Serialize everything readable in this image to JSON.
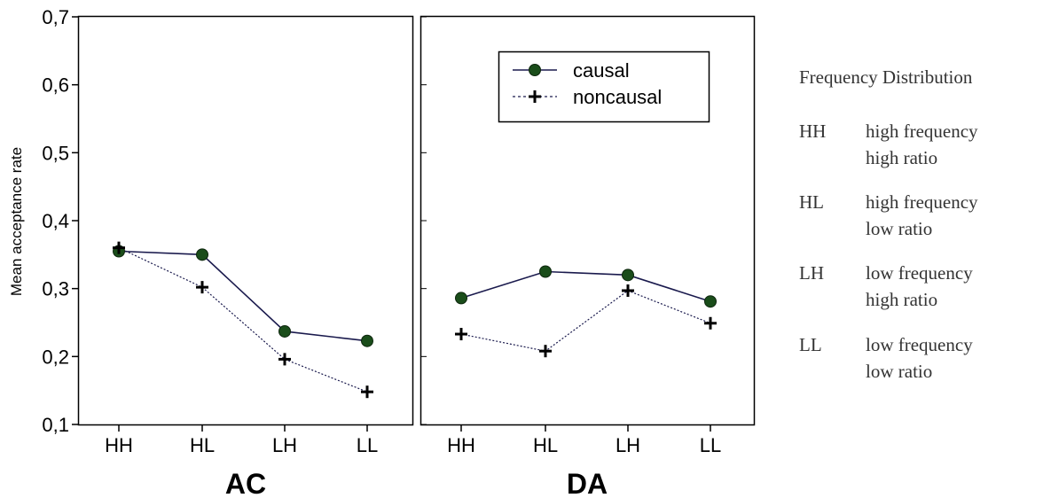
{
  "chart_data": {
    "type": "line",
    "ylabel": "Mean acceptance rate",
    "ylim": [
      0.1,
      0.7
    ],
    "yticks": [
      "0,1",
      "0,2",
      "0,3",
      "0,4",
      "0,5",
      "0,6",
      "0,7"
    ],
    "categories": [
      "HH",
      "HL",
      "LH",
      "LL"
    ],
    "legend": {
      "position": "top-right",
      "entries": [
        "causal",
        "noncausal"
      ]
    },
    "panels": [
      {
        "title": "AC",
        "series": [
          {
            "name": "causal",
            "color": "#1a4d1a",
            "line_color": "#1a1a4d",
            "marker": "circle",
            "values": [
              0.355,
              0.35,
              0.237,
              0.223
            ]
          },
          {
            "name": "noncausal",
            "color": "#000000",
            "line_color": "#1a1a4d",
            "marker": "plus",
            "values": [
              0.36,
              0.302,
              0.196,
              0.148
            ]
          }
        ]
      },
      {
        "title": "DA",
        "series": [
          {
            "name": "causal",
            "color": "#1a4d1a",
            "line_color": "#1a1a4d",
            "marker": "circle",
            "values": [
              0.286,
              0.325,
              0.32,
              0.281
            ]
          },
          {
            "name": "noncausal",
            "color": "#000000",
            "line_color": "#1a1a4d",
            "marker": "plus",
            "values": [
              0.233,
              0.208,
              0.297,
              0.249
            ]
          }
        ]
      }
    ],
    "side_legend": {
      "title": "Frequency Distribution",
      "items": [
        {
          "code": "HH",
          "line1": "high frequency",
          "line2": "high ratio"
        },
        {
          "code": "HL",
          "line1": "high frequency",
          "line2": "low ratio"
        },
        {
          "code": "LH",
          "line1": "low frequency",
          "line2": "high ratio"
        },
        {
          "code": "LL",
          "line1": "low frequency",
          "line2": "low ratio"
        }
      ]
    }
  }
}
